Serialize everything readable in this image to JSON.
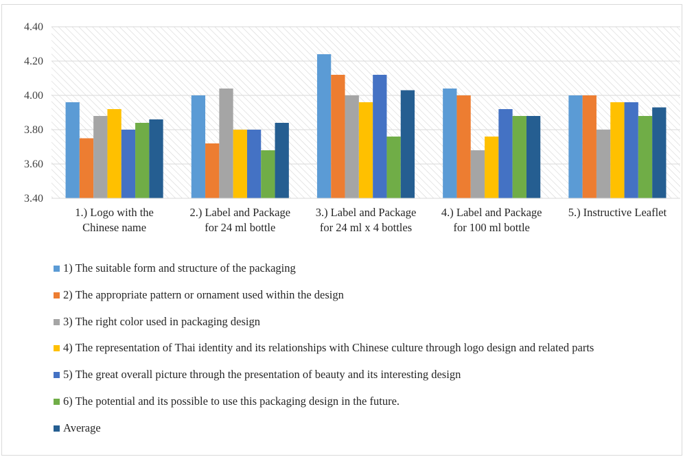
{
  "chart_data": {
    "type": "bar",
    "title": "",
    "xlabel": "",
    "ylabel": "",
    "ylim": [
      3.4,
      4.4
    ],
    "y_ticks": [
      "3.40",
      "3.60",
      "3.80",
      "4.00",
      "4.20",
      "4.40"
    ],
    "grid": true,
    "plot_background": "diagonal-hatch",
    "legend_position": "bottom",
    "categories": [
      [
        "1.) Logo with the",
        "Chinese name"
      ],
      [
        "2.) Label and Package",
        "for 24 ml bottle"
      ],
      [
        "3.) Label and Package",
        "for 24 ml x 4 bottles"
      ],
      [
        "4.) Label and Package",
        "for 100 ml bottle"
      ],
      [
        "5.) Instructive Leaflet"
      ]
    ],
    "series": [
      {
        "name": "1) The suitable form and structure of the packaging",
        "color": "#5b9bd5",
        "values": [
          3.96,
          4.0,
          4.24,
          4.04,
          4.0
        ]
      },
      {
        "name": "2) The appropriate pattern or ornament used within the design",
        "color": "#ed7d31",
        "values": [
          3.75,
          3.72,
          4.12,
          4.0,
          4.0
        ]
      },
      {
        "name": "3) The right color used in packaging design",
        "color": "#a5a5a5",
        "values": [
          3.88,
          4.04,
          4.0,
          3.68,
          3.8
        ]
      },
      {
        "name": "4) The representation of Thai identity and its relationships with Chinese culture through logo design and related parts",
        "color": "#ffc000",
        "values": [
          3.92,
          3.8,
          3.96,
          3.76,
          3.96
        ]
      },
      {
        "name": "5) The great overall picture through the presentation of beauty and its interesting design",
        "color": "#4472c4",
        "values": [
          3.8,
          3.8,
          4.12,
          3.92,
          3.96
        ]
      },
      {
        "name": "6) The potential and its possible to use this packaging design in the future.",
        "color": "#70ad47",
        "values": [
          3.84,
          3.68,
          3.76,
          3.88,
          3.88
        ]
      },
      {
        "name": "Average",
        "color": "#255e91",
        "values": [
          3.86,
          3.84,
          4.03,
          3.88,
          3.93
        ]
      }
    ]
  }
}
